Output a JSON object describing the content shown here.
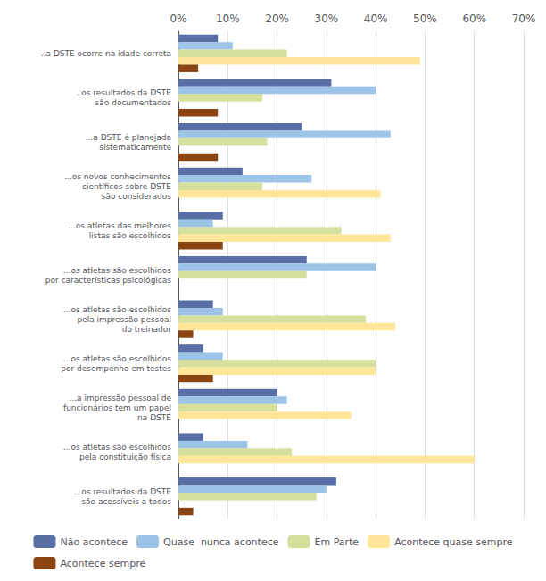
{
  "chart_data": {
    "type": "bar",
    "orientation": "horizontal",
    "categories": [
      "..a DSTE ocorre na idade correta",
      "..os resultados da DSTE\nsão documentados",
      "...a DSTE é planejada\nsistematicamente",
      "...os novos conhecimentos\ncientíficos sobre DSTE\nsão considerados",
      "...os atletas das melhores\nlistas são escolhidos",
      "...os atletas são escolhidos\npor características psicológicas",
      "...os atletas são escolhidos\npela impressão pessoal\ndo treinador",
      "...os atletas são escolhidos\npor desempenho em testes",
      "...a impressão pessoal de\nfuncionários tem um papel\nna DSTE",
      "...os atletas são escolhidos\npela constituição física",
      "...os resultados da DSTE\nsão acessíveis a todos"
    ],
    "series": [
      {
        "name": "Não acontece",
        "color": "#596EA5",
        "values": [
          8,
          31,
          25,
          13,
          9,
          26,
          7,
          5,
          20,
          5,
          32
        ]
      },
      {
        "name": "Quase  nunca acontece",
        "color": "#9DC3E6",
        "values": [
          11,
          40,
          43,
          27,
          7,
          40,
          9,
          9,
          22,
          14,
          30
        ]
      },
      {
        "name": "Em Parte",
        "color": "#D4E09B",
        "values": [
          22,
          17,
          18,
          17,
          33,
          26,
          38,
          40,
          20,
          23,
          28
        ]
      },
      {
        "name": "Acontece quase sempre",
        "color": "#FFE699",
        "values": [
          49,
          0,
          0,
          41,
          43,
          0,
          44,
          40,
          35,
          60,
          0
        ]
      },
      {
        "name": "Acontece sempre",
        "color": "#8B4513",
        "values": [
          4,
          8,
          8,
          0,
          9,
          0,
          3,
          7,
          0,
          0,
          3
        ]
      }
    ],
    "xlim": [
      0,
      70
    ],
    "xticks": [
      {
        "value": 0,
        "label": "0%"
      },
      {
        "value": 10,
        "label": "10%"
      },
      {
        "value": 20,
        "label": "20%"
      },
      {
        "value": 30,
        "label": "30%"
      },
      {
        "value": 40,
        "label": "40%"
      },
      {
        "value": 50,
        "label": "50%"
      },
      {
        "value": 60,
        "label": "60%"
      },
      {
        "value": 70,
        "label": "70%"
      }
    ],
    "grid": true,
    "legend": "bottom"
  }
}
